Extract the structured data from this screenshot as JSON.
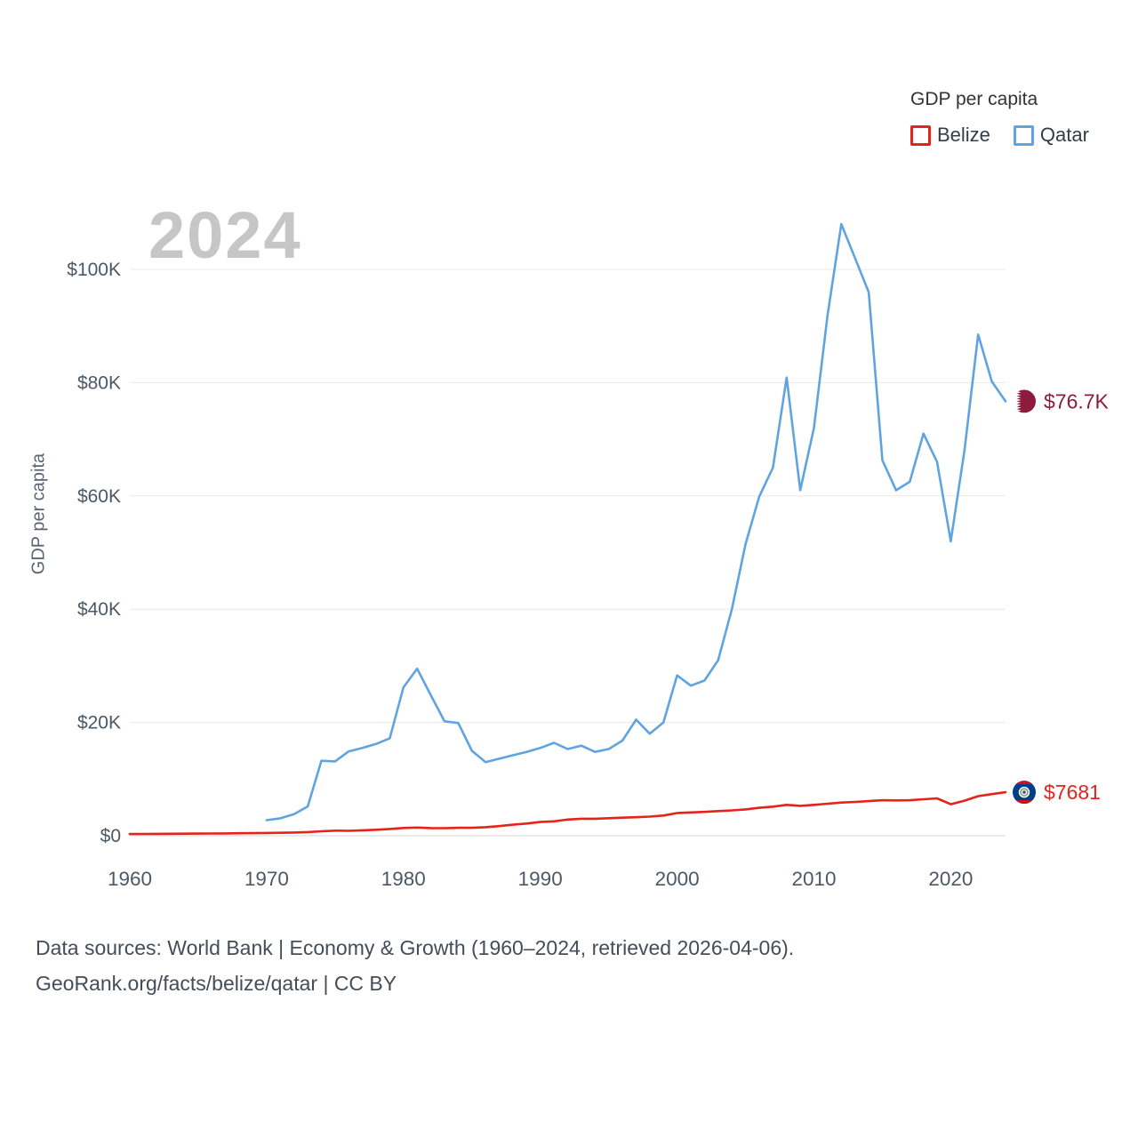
{
  "watermark": "2024",
  "legend": {
    "title": "GDP per capita",
    "items": [
      {
        "label": "Belize",
        "color": "#e5231b"
      },
      {
        "label": "Qatar",
        "color": "#5fa4e1"
      }
    ]
  },
  "axes": {
    "ylabel": "GDP per capita",
    "yticks": [
      {
        "value": 0,
        "label": "$0"
      },
      {
        "value": 20000,
        "label": "$20K"
      },
      {
        "value": 40000,
        "label": "$40K"
      },
      {
        "value": 60000,
        "label": "$60K"
      },
      {
        "value": 80000,
        "label": "$80K"
      },
      {
        "value": 100000,
        "label": "$100K"
      }
    ],
    "xticks": [
      {
        "value": 1960,
        "label": "1960"
      },
      {
        "value": 1970,
        "label": "1970"
      },
      {
        "value": 1980,
        "label": "1980"
      },
      {
        "value": 1990,
        "label": "1990"
      },
      {
        "value": 2000,
        "label": "2000"
      },
      {
        "value": 2010,
        "label": "2010"
      },
      {
        "value": 2020,
        "label": "2020"
      }
    ]
  },
  "end_labels": [
    {
      "series": "Qatar",
      "flag": "qatar",
      "text": "$76.7K",
      "value": 76700,
      "color": "#8d1b3d"
    },
    {
      "series": "Belize",
      "flag": "belize",
      "text": "$7681",
      "value": 7681,
      "color": "#e5231b"
    }
  ],
  "footer": {
    "line1": "Data sources: World Bank | Economy & Growth (1960–2024, retrieved 2026-04-06).",
    "line2": "GeoRank.org/facts/belize/qatar | CC BY"
  },
  "colors": {
    "belize_line": "#e5231b",
    "qatar_line": "#5fa4e1",
    "qatar_maroon": "#8d1b3d",
    "belize_flag_blue": "#003f87",
    "belize_flag_red": "#ce1126",
    "grid": "#e8e8e8",
    "zero_line": "#d6d6d6",
    "axis_text": "#4d5866",
    "watermark": "#c6c6c6"
  },
  "chart_data": {
    "type": "line",
    "title": "GDP per capita",
    "xlabel": "",
    "ylabel": "GDP per capita",
    "xlim": [
      1960,
      2024
    ],
    "ylim": [
      0,
      110000
    ],
    "grid": true,
    "legend_position": "top-right",
    "year_watermark": "2024",
    "series": [
      {
        "name": "Belize",
        "color": "#e5231b",
        "end_label": "$7681",
        "x": [
          1960,
          1961,
          1962,
          1963,
          1964,
          1965,
          1966,
          1967,
          1968,
          1969,
          1970,
          1971,
          1972,
          1973,
          1974,
          1975,
          1976,
          1977,
          1978,
          1979,
          1980,
          1981,
          1982,
          1983,
          1984,
          1985,
          1986,
          1987,
          1988,
          1989,
          1990,
          1991,
          1992,
          1993,
          1994,
          1995,
          1996,
          1997,
          1998,
          1999,
          2000,
          2001,
          2002,
          2003,
          2004,
          2005,
          2006,
          2007,
          2008,
          2009,
          2010,
          2011,
          2012,
          2013,
          2014,
          2015,
          2016,
          2017,
          2018,
          2019,
          2020,
          2021,
          2022,
          2023,
          2024
        ],
        "y": [
          304,
          315,
          325,
          340,
          355,
          370,
          390,
          410,
          435,
          460,
          490,
          520,
          565,
          640,
          780,
          900,
          870,
          950,
          1050,
          1200,
          1370,
          1450,
          1350,
          1330,
          1400,
          1400,
          1500,
          1700,
          1950,
          2150,
          2420,
          2550,
          2850,
          3000,
          3000,
          3090,
          3190,
          3260,
          3380,
          3570,
          4000,
          4110,
          4200,
          4350,
          4470,
          4650,
          4930,
          5130,
          5450,
          5270,
          5440,
          5650,
          5850,
          5960,
          6110,
          6270,
          6230,
          6260,
          6440,
          6590,
          5560,
          6180,
          6980,
          7340,
          7681
        ]
      },
      {
        "name": "Qatar",
        "color": "#5fa4e1",
        "end_label": "$76.7K",
        "x": [
          1970,
          1971,
          1972,
          1973,
          1974,
          1975,
          1976,
          1977,
          1978,
          1979,
          1980,
          1981,
          1982,
          1983,
          1984,
          1985,
          1986,
          1987,
          1988,
          1989,
          1990,
          1991,
          1992,
          1993,
          1994,
          1995,
          1996,
          1997,
          1998,
          1999,
          2000,
          2001,
          2002,
          2003,
          2004,
          2005,
          2006,
          2007,
          2008,
          2009,
          2010,
          2011,
          2012,
          2013,
          2014,
          2015,
          2016,
          2017,
          2018,
          2019,
          2020,
          2021,
          2022,
          2023,
          2024
        ],
        "y": [
          2755,
          3070,
          3820,
          5160,
          13240,
          13130,
          14900,
          15500,
          16200,
          17200,
          26200,
          29500,
          24800,
          20200,
          19900,
          15000,
          13000,
          13600,
          14200,
          14800,
          15500,
          16400,
          15300,
          15900,
          14800,
          15300,
          16800,
          20500,
          18000,
          20000,
          28300,
          26500,
          27400,
          31000,
          40000,
          51500,
          59900,
          65000,
          80900,
          61000,
          72000,
          92000,
          108000,
          102000,
          96000,
          66300,
          61000,
          62500,
          71000,
          66000,
          52000,
          68000,
          88500,
          80200,
          76700
        ]
      }
    ]
  }
}
